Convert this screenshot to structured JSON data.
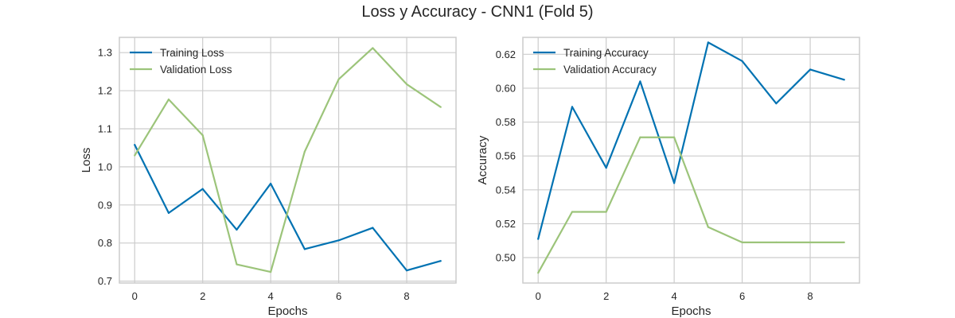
{
  "figure": {
    "title": "Loss y Accuracy - CNN1 (Fold 5)"
  },
  "colors": {
    "series_1": "#0072B2",
    "series_2": "#9CC47A",
    "grid": "#CCCCCC",
    "frame": "#CCCCCC"
  },
  "chart_data": [
    {
      "type": "line",
      "title": "",
      "xlabel": "Epochs",
      "ylabel": "Loss",
      "xlim": [
        -0.45,
        9.45
      ],
      "ylim": [
        0.695,
        1.34
      ],
      "xticks": [
        0,
        2,
        4,
        6,
        8
      ],
      "yticks": [
        0.7,
        0.8,
        0.9,
        1.0,
        1.1,
        1.2,
        1.3
      ],
      "ytick_format": 1,
      "grid": true,
      "legend": "top-left",
      "x": [
        0,
        1,
        2,
        3,
        4,
        5,
        6,
        7,
        8,
        9
      ],
      "series": [
        {
          "name": "Training Loss",
          "values": [
            1.058,
            0.879,
            0.942,
            0.835,
            0.956,
            0.784,
            0.807,
            0.84,
            0.728,
            0.753
          ]
        },
        {
          "name": "Validation Loss",
          "values": [
            1.03,
            1.177,
            1.083,
            0.744,
            0.724,
            1.04,
            1.23,
            1.312,
            1.217,
            1.157
          ]
        }
      ]
    },
    {
      "type": "line",
      "title": "",
      "xlabel": "Epochs",
      "ylabel": "Accuracy",
      "xlim": [
        -0.45,
        9.45
      ],
      "ylim": [
        0.485,
        0.63
      ],
      "xticks": [
        0,
        2,
        4,
        6,
        8
      ],
      "yticks": [
        0.5,
        0.52,
        0.54,
        0.56,
        0.58,
        0.6,
        0.62
      ],
      "ytick_format": 2,
      "grid": true,
      "legend": "top-left",
      "x": [
        0,
        1,
        2,
        3,
        4,
        5,
        6,
        7,
        8,
        9
      ],
      "series": [
        {
          "name": "Training Accuracy",
          "values": [
            0.511,
            0.589,
            0.553,
            0.604,
            0.544,
            0.627,
            0.616,
            0.591,
            0.611,
            0.605
          ]
        },
        {
          "name": "Validation Accuracy",
          "values": [
            0.491,
            0.527,
            0.527,
            0.571,
            0.571,
            0.518,
            0.509,
            0.509,
            0.509,
            0.509
          ]
        }
      ]
    }
  ]
}
